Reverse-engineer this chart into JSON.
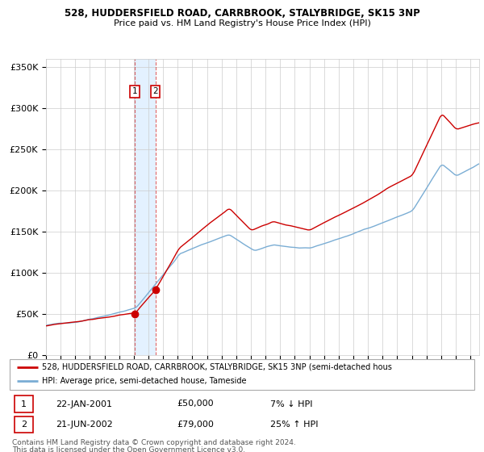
{
  "title": "528, HUDDERSFIELD ROAD, CARRBROOK, STALYBRIDGE, SK15 3NP",
  "subtitle": "Price paid vs. HM Land Registry's House Price Index (HPI)",
  "legend_line1": "528, HUDDERSFIELD ROAD, CARRBROOK, STALYBRIDGE, SK15 3NP (semi-detached hous",
  "legend_line2": "HPI: Average price, semi-detached house, Tameside",
  "transaction1_date": "22-JAN-2001",
  "transaction1_price": 50000,
  "transaction1_hpi": "7% ↓ HPI",
  "transaction2_date": "21-JUN-2002",
  "transaction2_price": 79000,
  "transaction2_hpi": "25% ↑ HPI",
  "footer1": "Contains HM Land Registry data © Crown copyright and database right 2024.",
  "footer2": "This data is licensed under the Open Government Licence v3.0.",
  "red_color": "#cc0000",
  "blue_color": "#7aadd4",
  "background_color": "#ffffff",
  "grid_color": "#cccccc",
  "highlight_color": "#ddeeff",
  "ylim_max": 360000,
  "xmin": 1995,
  "xmax": 2025
}
